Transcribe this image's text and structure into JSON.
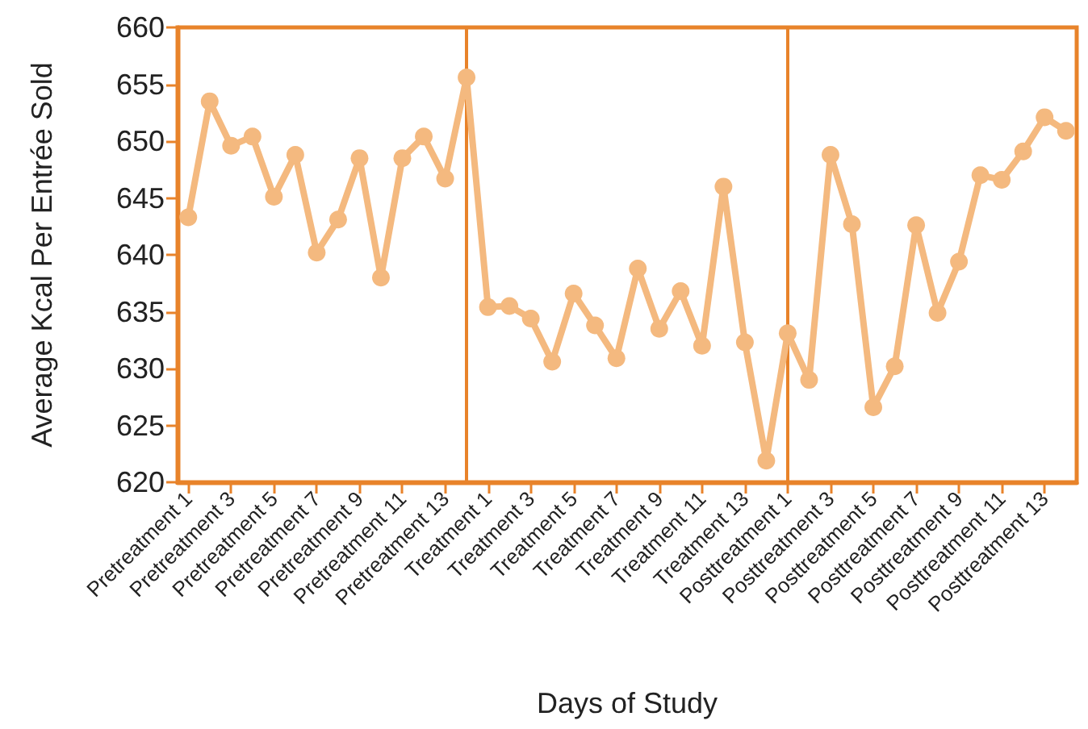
{
  "chart_data": {
    "type": "line",
    "xlabel": "Days of Study",
    "ylabel": "Average Kcal Per Entrée Sold",
    "categories": [
      "Pretreatment 1",
      null,
      "Pretreatment 3",
      null,
      "Pretreatment 5",
      null,
      "Pretreatment 7",
      null,
      "Pretreatment 9",
      null,
      "Pretreatment 11",
      null,
      "Pretreatment 13",
      null,
      "Treatment 1",
      null,
      "Treatment 3",
      null,
      "Treatment 5",
      null,
      "Treatment 7",
      null,
      "Treatment 9",
      null,
      "Treatment 11",
      null,
      "Treatment 13",
      null,
      "Posttreatment 1",
      null,
      "Posttreatment 3",
      null,
      "Posttreatment 5",
      null,
      "Posttreatment 7",
      null,
      "Posttreatment 9",
      null,
      "Posttreatment 11",
      null,
      "Posttreatment 13",
      null
    ],
    "series": [
      {
        "color": "#f4b97f",
        "values": [
          643.3,
          653.5,
          649.6,
          650.4,
          645.1,
          648.8,
          640.2,
          643.1,
          648.5,
          638.0,
          648.5,
          650.4,
          646.7,
          655.6,
          635.4,
          635.5,
          634.4,
          630.6,
          636.6,
          633.8,
          630.9,
          638.8,
          633.5,
          636.8,
          632.0,
          646.0,
          632.3,
          621.9,
          633.1,
          629.0,
          648.8,
          642.7,
          626.6,
          630.2,
          642.6,
          634.9,
          639.4,
          647.0,
          646.6,
          649.1,
          652.1,
          650.9
        ]
      }
    ],
    "ylim": [
      620,
      660
    ],
    "yticks": [
      620,
      625,
      630,
      635,
      640,
      645,
      650,
      655,
      660
    ],
    "grid": false,
    "marker": "circle",
    "line_style": "solid"
  }
}
